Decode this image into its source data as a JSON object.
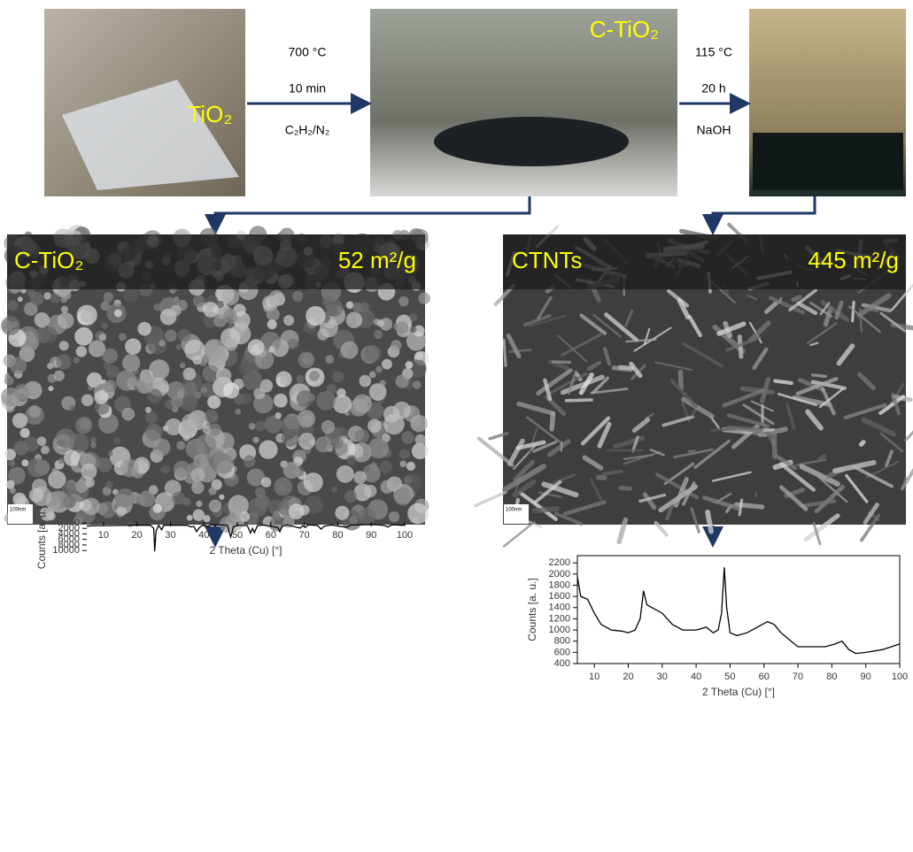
{
  "steps": {
    "photo1_label": "TiO₂",
    "step1": [
      "700 °C",
      "10 min",
      "C₂H₂/N₂"
    ],
    "photo2_label": "C-TiO₂",
    "step2": [
      "115 °C",
      "20 h",
      "NaOH"
    ]
  },
  "sem": [
    {
      "label": "C-TiO₂",
      "area": "52 m²/g",
      "scale": "100nm"
    },
    {
      "label": "CTNTs",
      "area": "445 m²/g",
      "scale": "100nm"
    }
  ],
  "chart_data": [
    {
      "type": "line",
      "xlabel": "2 Theta (Cu) [°]",
      "ylabel": "Counts [a. u.]",
      "xlim": [
        5,
        100
      ],
      "ylim": [
        -300,
        10900
      ],
      "xticks": [
        10,
        20,
        30,
        40,
        50,
        60,
        70,
        80,
        90,
        100
      ],
      "yticks": [
        0,
        2000,
        4000,
        6000,
        8000,
        10000
      ],
      "color": "#000000",
      "x": [
        5,
        7,
        10,
        15,
        20,
        24,
        25,
        25.3,
        25.7,
        26.5,
        27.4,
        28,
        30,
        35,
        36.1,
        37,
        37.8,
        38.6,
        39.5,
        41.3,
        42,
        44,
        47,
        48,
        48.8,
        50,
        53,
        53.9,
        54.5,
        55.1,
        56,
        58,
        62.1,
        62.7,
        63.4,
        65,
        68.8,
        69.5,
        70.3,
        71,
        74,
        75,
        76,
        78,
        82.6,
        84,
        88,
        92,
        94,
        95,
        96,
        98,
        99,
        100
      ],
      "values": [
        1200,
        1050,
        1000,
        950,
        880,
        850,
        2000,
        10300,
        3000,
        900,
        2500,
        900,
        850,
        900,
        1500,
        1300,
        3200,
        1800,
        900,
        1200,
        800,
        750,
        900,
        5100,
        1500,
        850,
        1000,
        3700,
        2000,
        3500,
        1000,
        800,
        1700,
        3200,
        1200,
        800,
        1900,
        1000,
        1700,
        800,
        900,
        2300,
        1200,
        800,
        1600,
        800,
        700,
        700,
        1000,
        1500,
        800,
        800,
        900,
        700
      ]
    },
    {
      "type": "line",
      "xlabel": "2 Theta (Cu) [°]",
      "ylabel": "Counts [a. u.]",
      "xlim": [
        5,
        100
      ],
      "ylim": [
        400,
        2330
      ],
      "xticks": [
        10,
        20,
        30,
        40,
        50,
        60,
        70,
        80,
        90,
        100
      ],
      "yticks": [
        400,
        600,
        800,
        1000,
        1200,
        1400,
        1600,
        1800,
        2000,
        2200
      ],
      "color": "#000000",
      "x": [
        5,
        6,
        8,
        10,
        12,
        15,
        18,
        20,
        22,
        23.5,
        24.5,
        25.5,
        27,
        30,
        33,
        36,
        40,
        43,
        45,
        46.5,
        47.5,
        48.3,
        49,
        50,
        52,
        55,
        58,
        61,
        63,
        65,
        68,
        70,
        74,
        78,
        81,
        83,
        85,
        87,
        90,
        95,
        100
      ],
      "values": [
        1950,
        1600,
        1550,
        1300,
        1100,
        1000,
        980,
        950,
        1000,
        1200,
        1700,
        1450,
        1400,
        1300,
        1100,
        1000,
        1000,
        1050,
        950,
        1000,
        1300,
        2120,
        1400,
        950,
        900,
        950,
        1050,
        1150,
        1100,
        950,
        800,
        700,
        700,
        700,
        750,
        800,
        650,
        580,
        600,
        650,
        750
      ]
    }
  ]
}
